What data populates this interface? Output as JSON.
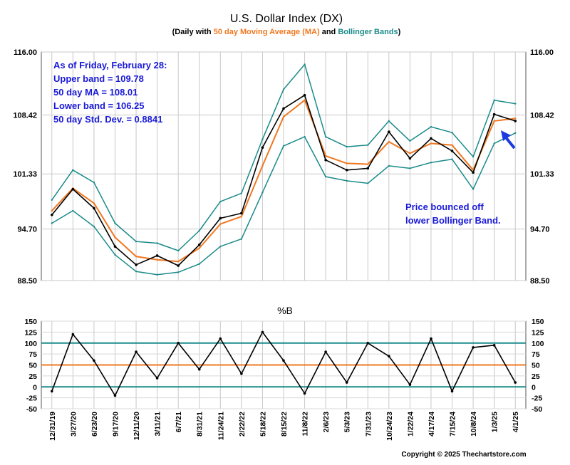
{
  "chart_data": [
    {
      "type": "line",
      "title": "U.S. Dollar Index (DX)",
      "subtitle_parts": [
        "(Daily with ",
        "50 day Moving Average (MA)",
        " and ",
        "Bollinger Bands",
        ")"
      ],
      "ylim": [
        88.5,
        116.0
      ],
      "y_ticks": [
        "116.00",
        "108.42",
        "101.33",
        "94.70",
        "88.50"
      ],
      "x": [
        "12/31/19",
        "3/27/20",
        "6/23/20",
        "9/17/20",
        "12/11/20",
        "3/11/21",
        "6/7/21",
        "8/31/21",
        "11/24/21",
        "2/22/22",
        "5/18/22",
        "8/15/22",
        "11/8/22",
        "2/6/23",
        "5/3/23",
        "7/31/23",
        "10/24/23",
        "1/22/24",
        "4/17/24",
        "7/15/24",
        "10/8/24",
        "1/3/25",
        "4/1/25"
      ],
      "series": [
        {
          "name": "DX",
          "values": [
            96.4,
            99.5,
            97.2,
            92.6,
            90.4,
            91.5,
            90.3,
            92.8,
            96.0,
            96.6,
            104.5,
            109.2,
            110.8,
            103.0,
            101.8,
            102.0,
            106.4,
            103.2,
            105.6,
            104.1,
            101.5,
            108.5,
            107.7
          ]
        },
        {
          "name": "50 day Moving Average (MA)",
          "values": [
            96.9,
            99.6,
            97.8,
            93.7,
            91.4,
            91.0,
            90.8,
            92.4,
            95.3,
            96.2,
            102.3,
            108.2,
            110.2,
            103.5,
            102.6,
            102.5,
            105.2,
            103.8,
            105.0,
            104.8,
            101.8,
            107.7,
            108.0
          ]
        },
        {
          "name": "Upper Bollinger Band",
          "values": [
            98.2,
            101.8,
            100.3,
            95.4,
            93.2,
            93.0,
            92.1,
            94.5,
            98.0,
            99.0,
            105.5,
            111.5,
            114.5,
            105.8,
            104.6,
            104.8,
            107.7,
            105.3,
            107.0,
            106.3,
            103.4,
            110.2,
            109.78
          ]
        },
        {
          "name": "Lower Bollinger Band",
          "values": [
            95.4,
            96.9,
            95.0,
            91.6,
            89.6,
            89.2,
            89.5,
            90.5,
            92.6,
            93.5,
            99.1,
            104.7,
            105.8,
            101.0,
            100.5,
            100.2,
            102.3,
            102.0,
            102.7,
            103.1,
            99.5,
            105.0,
            106.25
          ]
        }
      ],
      "annotations": [
        "As of Friday,  February 28:",
        "Upper band = 109.78",
        "50 day MA = 108.01",
        "Lower band = 106.25",
        "50 day Std. Dev. = 0.8841",
        "Price bounced off",
        "lower Bollinger Band."
      ],
      "colors": {
        "price": "#000000",
        "ma": "#f07820",
        "bands": "#1a8a8a",
        "annotation": "#1a1ad8",
        "arrow": "#1a3adf"
      },
      "grid": true
    },
    {
      "type": "line",
      "title": "%B",
      "ylim": [
        -50,
        150
      ],
      "y_ticks": [
        "150",
        "125",
        "100",
        "75",
        "50",
        "25",
        "0",
        "-25",
        "-50"
      ],
      "reference_lines": [
        {
          "value": 100,
          "color": "#1a8a8a"
        },
        {
          "value": 50,
          "color": "#f07820"
        },
        {
          "value": 0,
          "color": "#1a8a8a"
        }
      ],
      "series": [
        {
          "name": "%B",
          "values": [
            -10,
            120,
            60,
            -20,
            80,
            20,
            100,
            40,
            110,
            30,
            125,
            60,
            -15,
            80,
            10,
            100,
            70,
            5,
            110,
            -10,
            90,
            95,
            10
          ]
        }
      ],
      "grid": true
    }
  ],
  "footer": {
    "copyright": "Copyright © 2025 Thechartstore.com"
  }
}
